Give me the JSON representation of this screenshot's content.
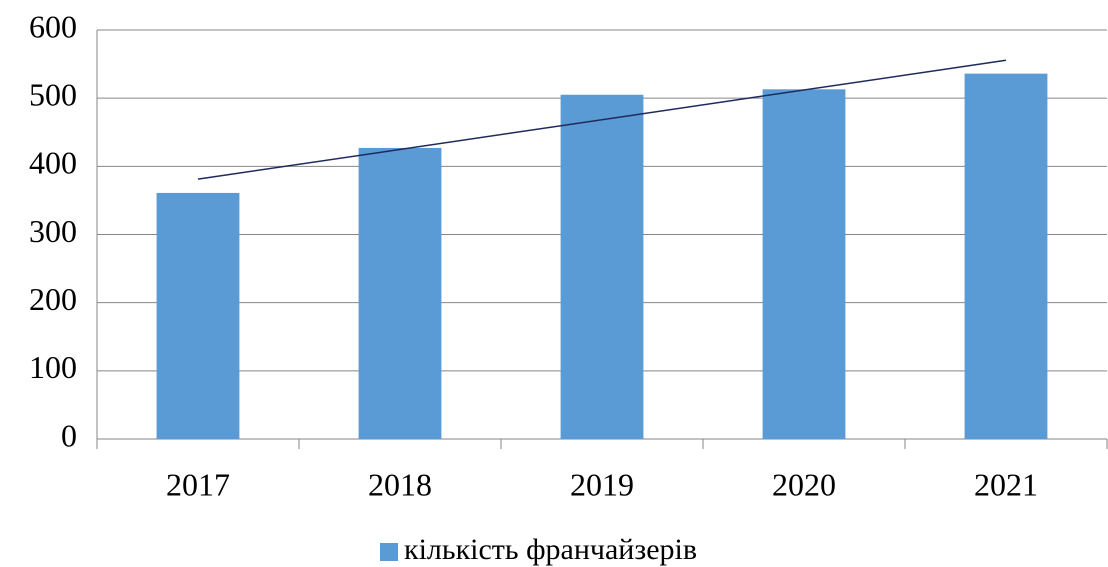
{
  "chart_data": {
    "type": "bar",
    "categories": [
      "2017",
      "2018",
      "2019",
      "2020",
      "2021"
    ],
    "series": [
      {
        "name": "кількість франчайзерів",
        "color": "#5b9bd5",
        "values": [
          361,
          427,
          505,
          513,
          536
        ]
      }
    ],
    "ylim": [
      0,
      600
    ],
    "yticks": [
      0,
      100,
      200,
      300,
      400,
      500,
      600
    ],
    "grid": true,
    "trendline": "linear",
    "trendline_color": "#1f2a5c",
    "legend": "bottom"
  }
}
